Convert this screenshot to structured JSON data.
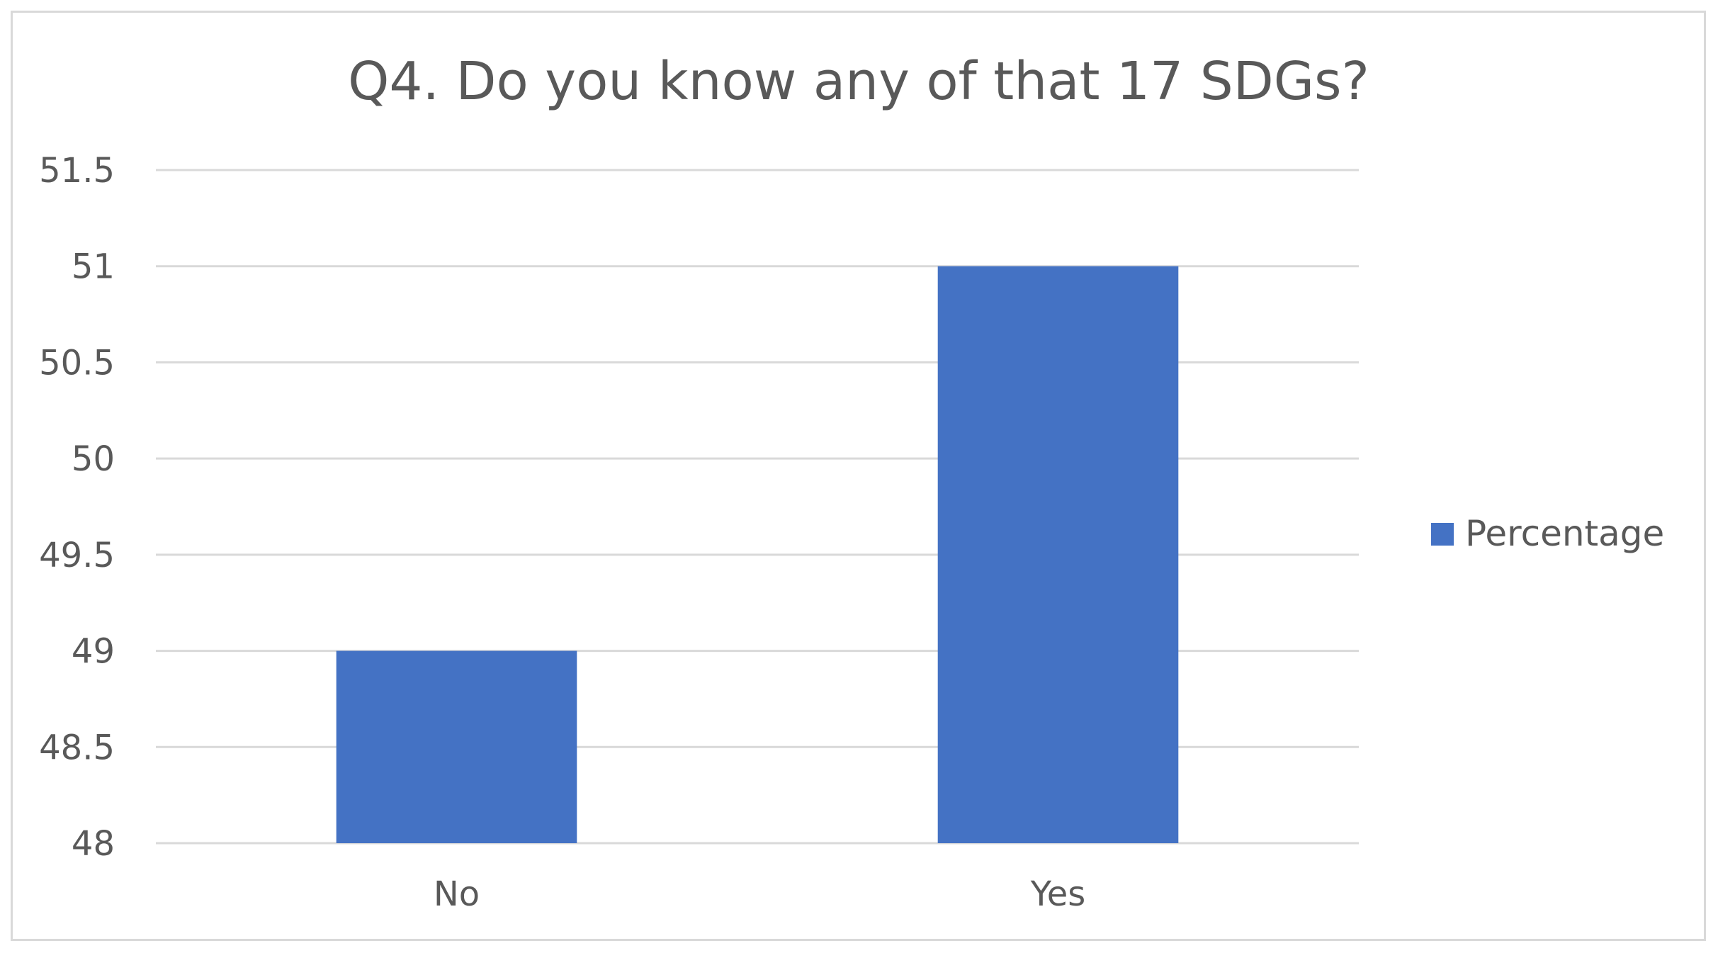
{
  "chart_data": {
    "type": "bar",
    "title": "Q4. Do you know any of that 17 SDGs?",
    "categories": [
      "No",
      "Yes"
    ],
    "series": [
      {
        "name": "Percentage",
        "values": [
          49,
          51
        ]
      }
    ],
    "ylim": [
      48,
      51.5
    ],
    "yticks": [
      48,
      48.5,
      49,
      49.5,
      50,
      50.5,
      51,
      51.5
    ],
    "grid": true,
    "legend_position": "right",
    "colors": {
      "bar": "#4472C4",
      "grid": "#d9d9d9",
      "text": "#595959"
    }
  }
}
